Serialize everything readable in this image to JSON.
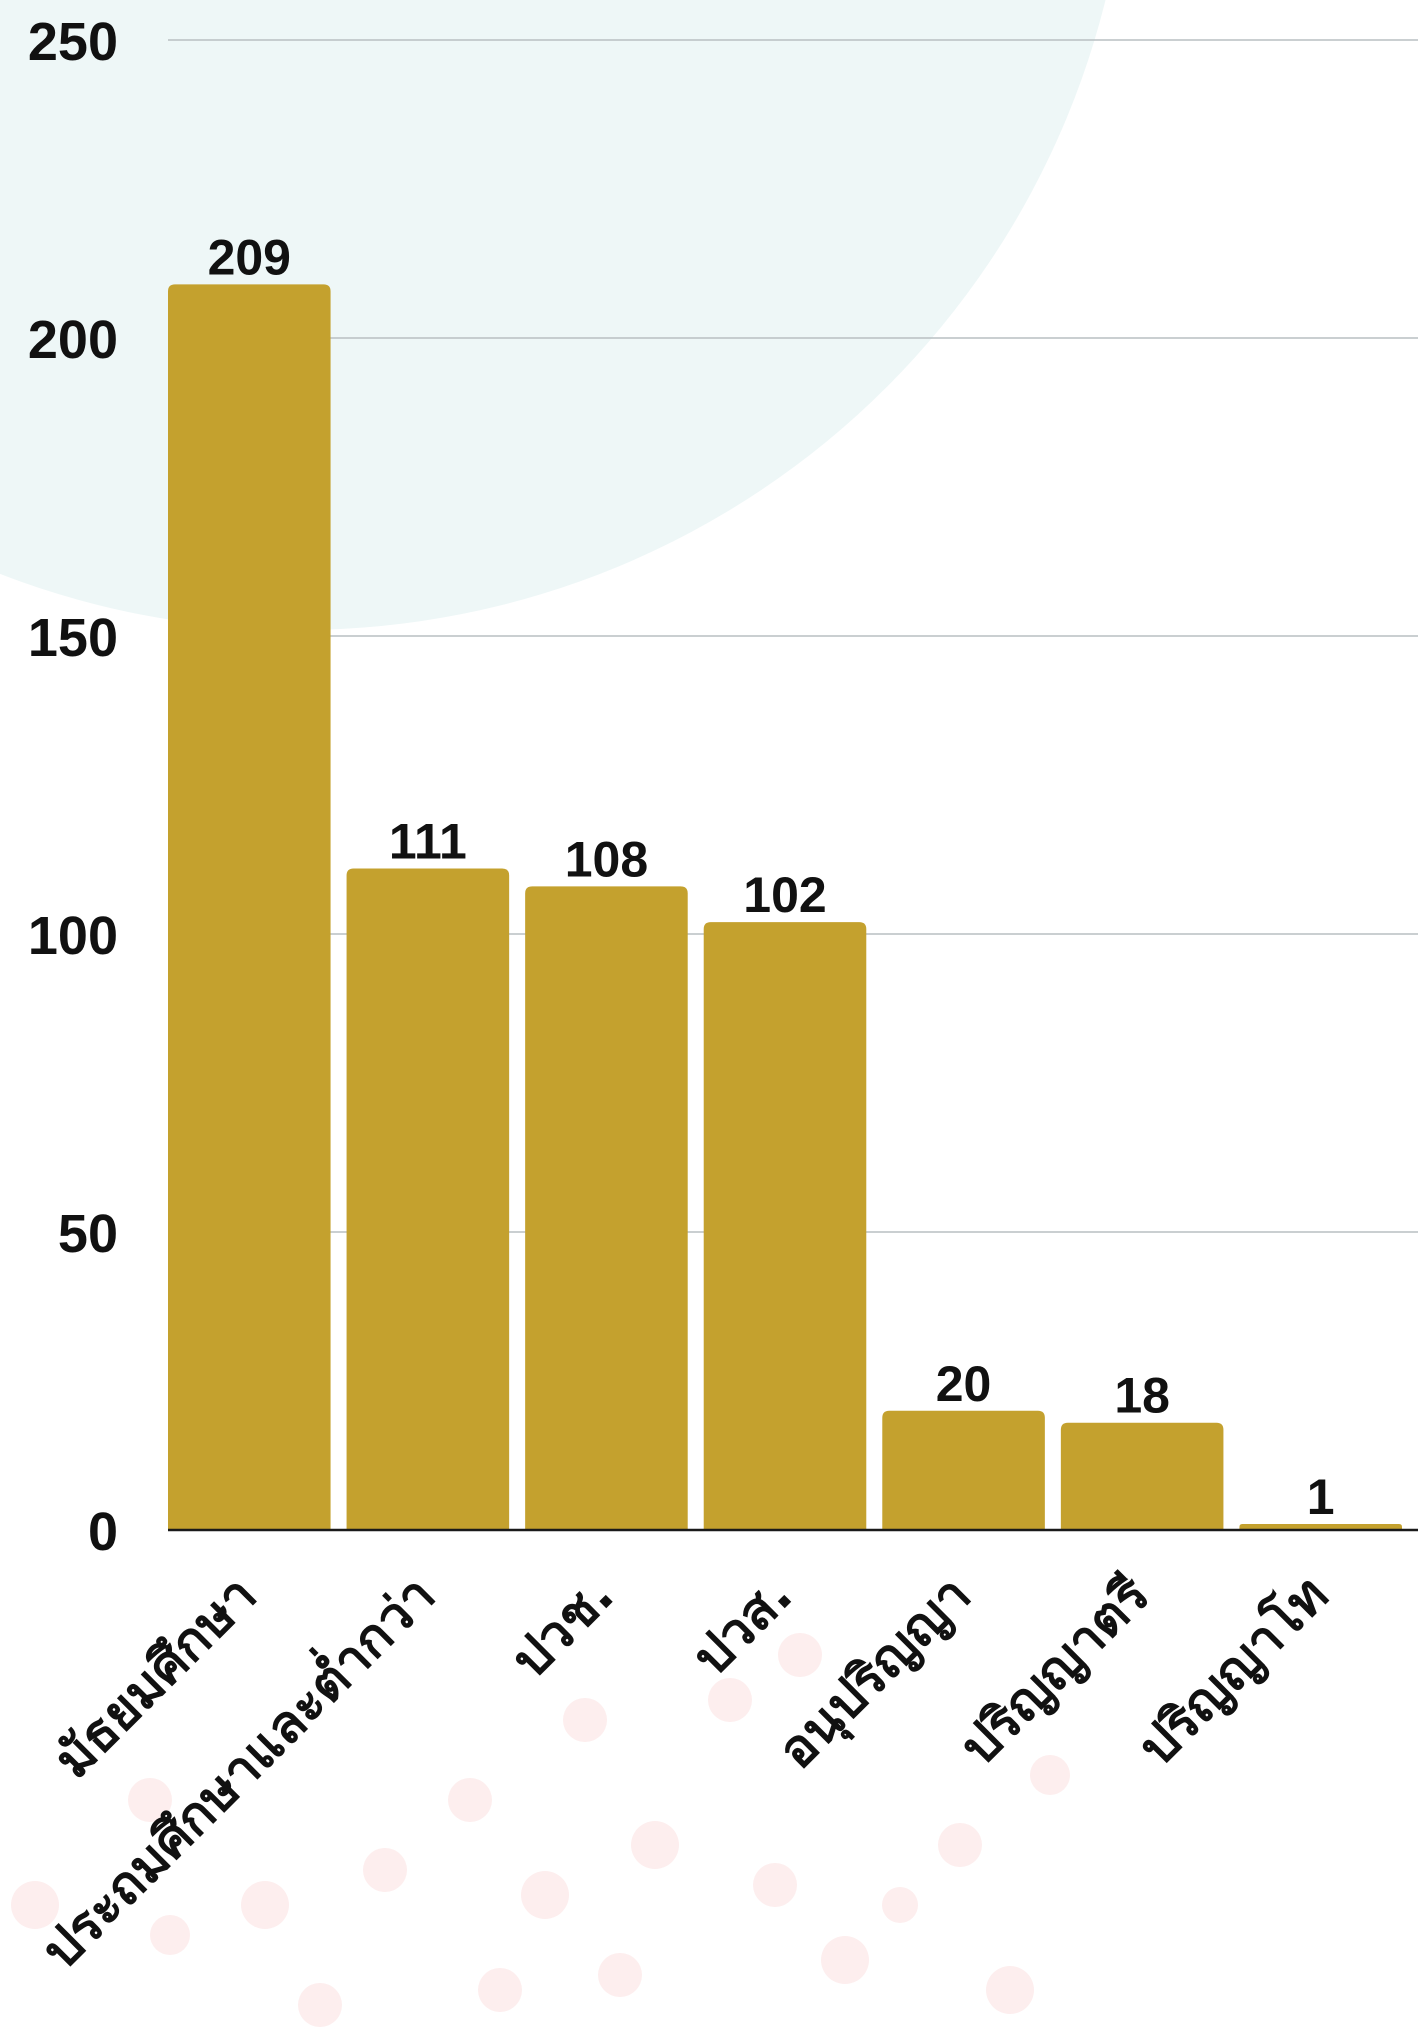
{
  "chart_data": {
    "type": "bar",
    "categories": [
      "มัธยมศึกษา",
      "ประถมศึกษาและต่ำกว่า",
      "ปวช.",
      "ปวส.",
      "อนุปริญญา",
      "ปริญญาตรี",
      "ปริญญาโท"
    ],
    "values": [
      209,
      111,
      108,
      102,
      20,
      18,
      1
    ],
    "ylim": [
      0,
      250
    ],
    "yticks": [
      0,
      50,
      100,
      150,
      200,
      250
    ],
    "grid": true,
    "legend": "none",
    "data_labels": true
  },
  "colors": {
    "bar": "#c4a12e",
    "grid": "#b8bfc2",
    "axis": "#1a1a1a",
    "text": "#111111",
    "background_circle": "#eef7f7",
    "background_dots": "#fdeeee"
  }
}
